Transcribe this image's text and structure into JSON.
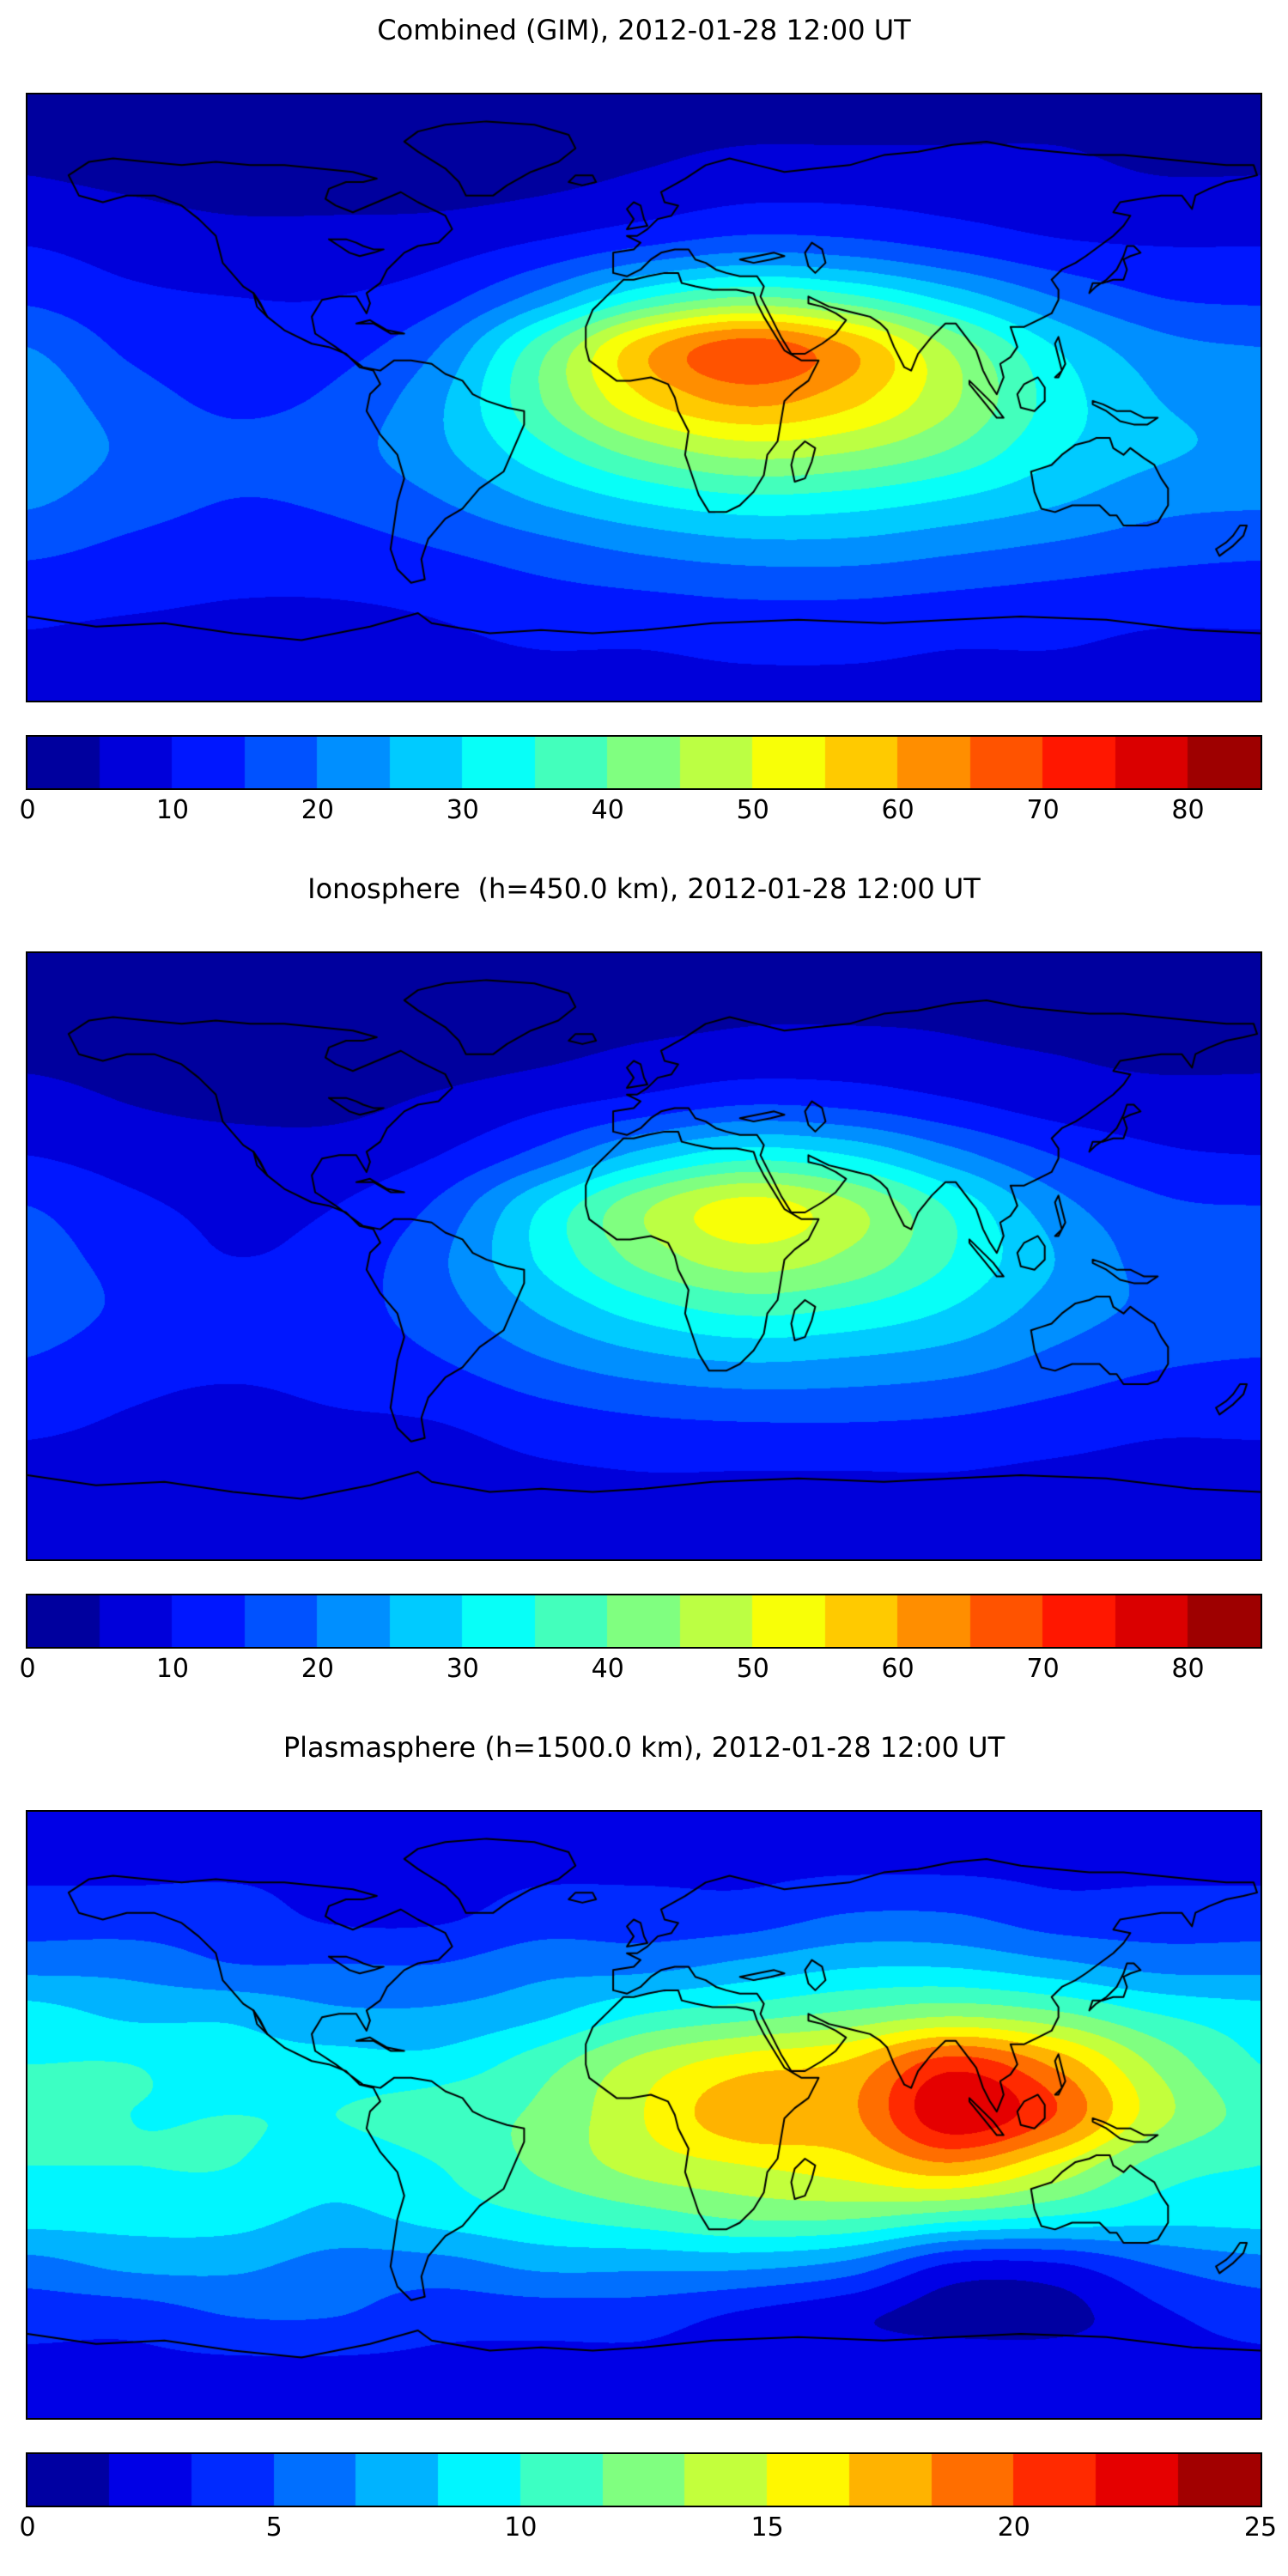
{
  "chart_data": [
    {
      "type": "heatmap",
      "subtype": "filled-contour-world-map",
      "title": "Combined (GIM), 2012-01-28 12:00 UT",
      "colormap": "jet",
      "projection_lon_range": [
        -180,
        180
      ],
      "projection_lat_range": [
        -90,
        90
      ],
      "levels_min": 0,
      "levels_max": 85,
      "n_levels": 17,
      "colorbar_ticks": [
        0,
        10,
        20,
        30,
        40,
        50,
        60,
        70,
        80
      ],
      "grid_lons": [
        -180,
        -150,
        -120,
        -90,
        -60,
        -30,
        0,
        30,
        60,
        90,
        120,
        150,
        180
      ],
      "grid_lats": [
        90,
        75,
        60,
        45,
        30,
        15,
        0,
        -15,
        -30,
        -45,
        -60,
        -75,
        -90
      ],
      "values": [
        [
          3,
          3,
          3,
          3,
          3,
          3,
          3,
          3,
          3,
          3,
          3,
          3,
          3
        ],
        [
          4,
          3,
          3,
          3,
          3,
          3,
          4,
          5,
          5,
          5,
          5,
          4,
          4
        ],
        [
          6,
          5,
          4,
          4,
          4,
          5,
          7,
          9,
          9,
          8,
          7,
          6,
          6
        ],
        [
          10,
          8,
          7,
          7,
          8,
          11,
          15,
          18,
          17,
          14,
          11,
          10,
          10
        ],
        [
          14,
          11,
          10,
          10,
          13,
          22,
          34,
          40,
          36,
          28,
          20,
          15,
          14
        ],
        [
          20,
          14,
          12,
          13,
          20,
          38,
          58,
          68,
          60,
          44,
          30,
          22,
          20
        ],
        [
          23,
          17,
          14,
          16,
          24,
          40,
          55,
          62,
          57,
          46,
          33,
          25,
          23
        ],
        [
          24,
          19,
          16,
          18,
          24,
          34,
          43,
          48,
          46,
          40,
          31,
          26,
          24
        ],
        [
          21,
          17,
          15,
          16,
          20,
          26,
          31,
          34,
          33,
          30,
          26,
          22,
          21
        ],
        [
          16,
          14,
          13,
          13,
          15,
          18,
          21,
          23,
          23,
          21,
          19,
          17,
          16
        ],
        [
          12,
          11,
          10,
          10,
          11,
          13,
          14,
          15,
          15,
          14,
          13,
          12,
          12
        ],
        [
          9,
          8,
          8,
          8,
          9,
          10,
          10,
          11,
          11,
          10,
          10,
          9,
          9
        ],
        [
          8,
          8,
          8,
          8,
          8,
          8,
          8,
          8,
          8,
          8,
          8,
          8,
          8
        ]
      ]
    },
    {
      "type": "heatmap",
      "subtype": "filled-contour-world-map",
      "title": "Ionosphere  (h=450.0 km), 2012-01-28 12:00 UT",
      "colormap": "jet",
      "projection_lon_range": [
        -180,
        180
      ],
      "projection_lat_range": [
        -90,
        90
      ],
      "levels_min": 0,
      "levels_max": 85,
      "n_levels": 17,
      "colorbar_ticks": [
        0,
        10,
        20,
        30,
        40,
        50,
        60,
        70,
        80
      ],
      "grid_lons": [
        -180,
        -150,
        -120,
        -90,
        -60,
        -30,
        0,
        30,
        60,
        90,
        120,
        150,
        180
      ],
      "grid_lats": [
        90,
        75,
        60,
        45,
        30,
        15,
        0,
        -15,
        -30,
        -45,
        -60,
        -75,
        -90
      ],
      "values": [
        [
          2,
          2,
          2,
          2,
          2,
          2,
          2,
          2,
          2,
          2,
          2,
          2,
          2
        ],
        [
          3,
          2,
          2,
          2,
          2,
          2,
          3,
          4,
          4,
          4,
          3,
          3,
          3
        ],
        [
          4,
          3,
          3,
          3,
          3,
          4,
          6,
          7,
          7,
          6,
          5,
          4,
          4
        ],
        [
          7,
          5,
          4,
          4,
          6,
          9,
          12,
          15,
          14,
          11,
          8,
          7,
          7
        ],
        [
          10,
          8,
          7,
          7,
          10,
          17,
          27,
          33,
          30,
          22,
          15,
          11,
          10
        ],
        [
          15,
          11,
          9,
          10,
          16,
          30,
          44,
          52,
          46,
          34,
          22,
          16,
          15
        ],
        [
          17,
          13,
          10,
          12,
          19,
          31,
          42,
          48,
          44,
          35,
          25,
          18,
          17
        ],
        [
          18,
          14,
          12,
          13,
          18,
          26,
          33,
          37,
          35,
          30,
          23,
          19,
          18
        ],
        [
          15,
          12,
          11,
          12,
          15,
          20,
          24,
          26,
          25,
          23,
          19,
          16,
          15
        ],
        [
          12,
          10,
          9,
          10,
          11,
          14,
          16,
          17,
          17,
          16,
          14,
          12,
          12
        ],
        [
          9,
          8,
          7,
          7,
          8,
          10,
          11,
          11,
          11,
          11,
          10,
          9,
          9
        ],
        [
          7,
          6,
          6,
          6,
          7,
          7,
          8,
          8,
          8,
          8,
          7,
          7,
          7
        ],
        [
          6,
          6,
          6,
          6,
          6,
          6,
          6,
          6,
          6,
          6,
          6,
          6,
          6
        ]
      ]
    },
    {
      "type": "heatmap",
      "subtype": "filled-contour-world-map",
      "title": "Plasmasphere (h=1500.0 km), 2012-01-28 12:00 UT",
      "colormap": "jet",
      "projection_lon_range": [
        -180,
        180
      ],
      "projection_lat_range": [
        -90,
        90
      ],
      "levels_min": 0,
      "levels_max": 25,
      "n_levels": 15,
      "colorbar_ticks": [
        0,
        5,
        10,
        15,
        20,
        25
      ],
      "grid_lons": [
        -180,
        -150,
        -120,
        -90,
        -60,
        -30,
        0,
        30,
        60,
        90,
        120,
        150,
        180
      ],
      "grid_lats": [
        90,
        75,
        60,
        45,
        30,
        15,
        0,
        -15,
        -30,
        -45,
        -60,
        -75,
        -90
      ],
      "values": [
        [
          3,
          3,
          3,
          3,
          3,
          3,
          3,
          3,
          3,
          3,
          3,
          3,
          3
        ],
        [
          3,
          3,
          3,
          3,
          3,
          3,
          3,
          3,
          3,
          3,
          3,
          3,
          3
        ],
        [
          4,
          4,
          4,
          3,
          3,
          4,
          4,
          4,
          5,
          5,
          4,
          4,
          4
        ],
        [
          6,
          6,
          5,
          5,
          5,
          6,
          6,
          7,
          8,
          8,
          7,
          6,
          6
        ],
        [
          9,
          8,
          8,
          7,
          7,
          8,
          10,
          11,
          12,
          13,
          12,
          10,
          9
        ],
        [
          10,
          10,
          9,
          9,
          9,
          11,
          14,
          16,
          17,
          21,
          18,
          13,
          10
        ],
        [
          11,
          10,
          10,
          10,
          11,
          12,
          15,
          18,
          18,
          23,
          20,
          14,
          11
        ],
        [
          10,
          10,
          10,
          9,
          10,
          12,
          14,
          15,
          16,
          18,
          15,
          11,
          10
        ],
        [
          9,
          9,
          9,
          8,
          9,
          10,
          11,
          12,
          12,
          11,
          10,
          9,
          9
        ],
        [
          6,
          7,
          7,
          6,
          6,
          7,
          7,
          7,
          6,
          3,
          3,
          5,
          6
        ],
        [
          4,
          4,
          5,
          5,
          4,
          4,
          4,
          3,
          2,
          1,
          1,
          3,
          4
        ],
        [
          3,
          3,
          3,
          3,
          3,
          3,
          3,
          3,
          3,
          3,
          3,
          3,
          3
        ],
        [
          3,
          3,
          3,
          3,
          3,
          3,
          3,
          3,
          3,
          3,
          3,
          3,
          3
        ]
      ]
    }
  ]
}
